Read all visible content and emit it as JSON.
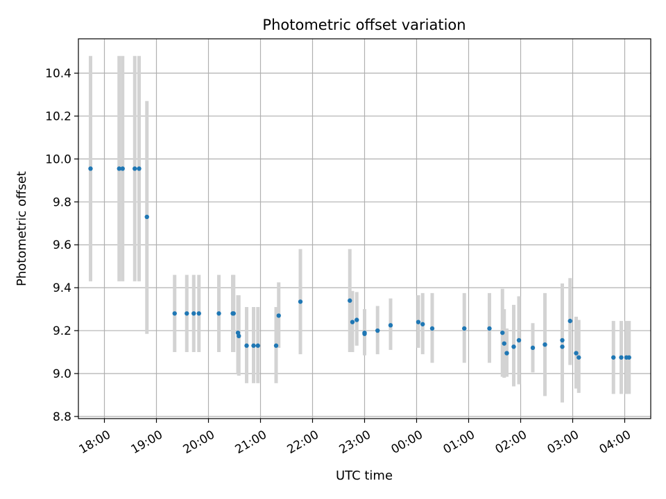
{
  "chart_data": {
    "type": "scatter",
    "title": "Photometric offset variation",
    "xlabel": "UTC time",
    "ylabel": "Photometric offset",
    "grid": true,
    "legend": "none",
    "x_start": "17:30",
    "xlim": [
      "17:30",
      "04:30"
    ],
    "ylim": [
      8.79,
      10.56
    ],
    "x_ticks": [
      "18:00",
      "19:00",
      "20:00",
      "21:00",
      "22:00",
      "23:00",
      "00:00",
      "01:00",
      "02:00",
      "03:00",
      "04:00"
    ],
    "y_ticks": [
      "8.8",
      "9.0",
      "9.2",
      "9.4",
      "9.6",
      "9.8",
      "10.0",
      "10.2",
      "10.4"
    ],
    "colors": {
      "point": "#1f77b4",
      "errorbar": "#d3d3d3",
      "grid": "#b0b0b0"
    },
    "series": [
      {
        "x": [
          "17:44",
          "18:17",
          "18:21",
          "18:35",
          "18:40",
          "18:49",
          "19:21",
          "19:35",
          "19:43",
          "19:49",
          "20:12",
          "20:28",
          "20:29",
          "20:34",
          "20:35",
          "20:44",
          "20:52",
          "20:57",
          "21:18",
          "21:21",
          "21:46",
          "22:43",
          "22:46",
          "22:51",
          "23:00",
          "23:00",
          "23:15",
          "23:30",
          "00:02",
          "00:07",
          "00:18",
          "00:55",
          "01:24",
          "01:39",
          "01:41",
          "01:44",
          "01:52",
          "01:58",
          "02:14",
          "02:28",
          "02:48",
          "02:48",
          "02:57",
          "03:04",
          "03:07",
          "03:47",
          "03:56",
          "04:02",
          "04:05"
        ],
        "y": [
          9.955,
          9.955,
          9.955,
          9.955,
          9.955,
          9.73,
          9.28,
          9.28,
          9.28,
          9.28,
          9.28,
          9.28,
          9.28,
          9.19,
          9.175,
          9.13,
          9.13,
          9.13,
          9.13,
          9.27,
          9.335,
          9.34,
          9.24,
          9.25,
          9.19,
          9.185,
          9.2,
          9.225,
          9.24,
          9.23,
          9.21,
          9.21,
          9.21,
          9.19,
          9.14,
          9.095,
          9.125,
          9.155,
          9.12,
          9.135,
          9.155,
          9.125,
          9.245,
          9.095,
          9.075,
          9.075,
          9.075,
          9.075,
          9.075
        ],
        "err_low": [
          9.43,
          9.43,
          9.43,
          9.43,
          9.43,
          9.185,
          9.1,
          9.1,
          9.1,
          9.1,
          9.1,
          9.1,
          9.1,
          9.0,
          8.99,
          8.955,
          8.955,
          8.955,
          8.955,
          9.12,
          9.09,
          9.1,
          9.1,
          9.13,
          9.085,
          9.085,
          9.09,
          9.11,
          9.12,
          9.09,
          9.05,
          9.05,
          9.05,
          8.985,
          8.98,
          8.985,
          8.94,
          8.95,
          9.005,
          8.895,
          8.865,
          8.89,
          9.04,
          8.93,
          8.91,
          8.905,
          8.905,
          8.905,
          8.905
        ],
        "err_high": [
          10.48,
          10.48,
          10.48,
          10.48,
          10.48,
          10.27,
          9.46,
          9.46,
          9.46,
          9.46,
          9.46,
          9.46,
          9.46,
          9.365,
          9.365,
          9.31,
          9.31,
          9.31,
          9.31,
          9.425,
          9.58,
          9.58,
          9.385,
          9.38,
          9.3,
          9.3,
          9.315,
          9.35,
          9.365,
          9.375,
          9.375,
          9.375,
          9.375,
          9.395,
          9.3,
          9.21,
          9.32,
          9.36,
          9.235,
          9.375,
          9.42,
          9.415,
          9.445,
          9.265,
          9.25,
          9.245,
          9.245,
          9.245,
          9.245
        ]
      }
    ]
  }
}
